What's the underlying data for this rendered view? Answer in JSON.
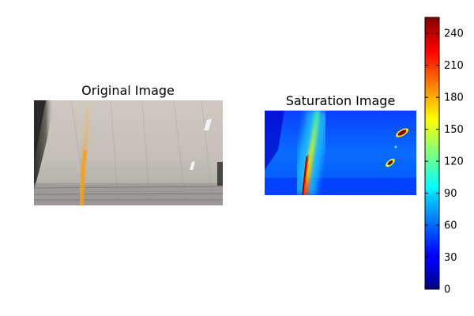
{
  "chart_data": [
    {
      "type": "image",
      "title": "Original Image",
      "description_colors": {
        "background": "#c8c3bc",
        "left_dark_edge": "#3a3836",
        "lane_line": "#e9a33a",
        "reflections": "#f2f2f2"
      }
    },
    {
      "type": "heatmap",
      "title": "Saturation Image",
      "colormap": "jet",
      "colorbar": {
        "min": 0,
        "max": 255,
        "ticks": [
          0,
          30,
          60,
          90,
          120,
          150,
          180,
          210,
          240
        ],
        "tick_labels": [
          "0",
          "30",
          "60",
          "90",
          "120",
          "150",
          "180",
          "210",
          "240"
        ]
      },
      "colors": {
        "low": "#00007f",
        "mid_low": "#0000ff",
        "mid": "#00ffff",
        "mid_high": "#ffff00",
        "high": "#ff0000",
        "max": "#7f0000"
      }
    }
  ]
}
